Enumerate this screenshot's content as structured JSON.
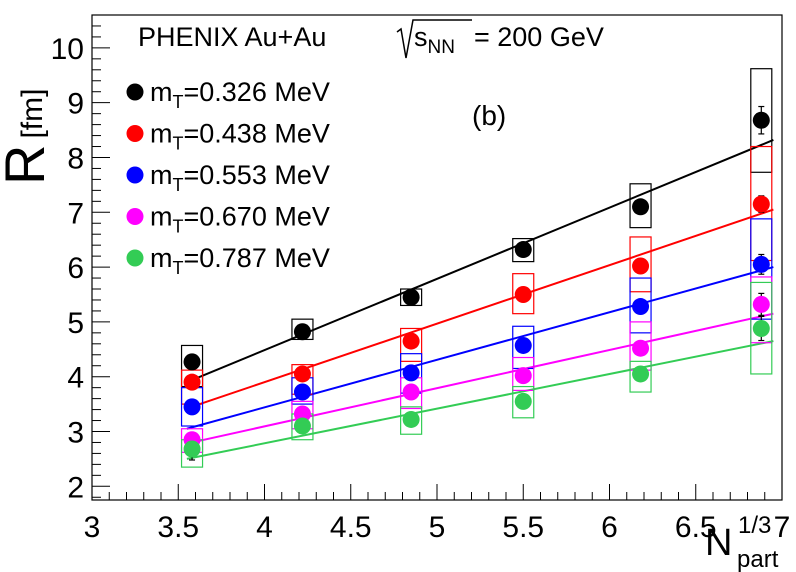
{
  "chart_data": {
    "type": "scatter",
    "title_main": "PHENIX Au+Au",
    "title_sqrt": "s",
    "title_sqrt_sub": "NN",
    "title_energy": "= 200 GeV",
    "panel_label": "(b)",
    "ylabel_main": "R",
    "ylabel_unit": "[fm]",
    "xlabel_main": "N",
    "xlabel_sub": "part",
    "xlabel_sup": "1/3",
    "legend_prefix": "m",
    "legend_sub": "T",
    "xlim": [
      3,
      7
    ],
    "ylim": [
      1.75,
      10.6
    ],
    "x_ticks": [
      "3",
      "3.5",
      "4",
      "4.5",
      "5",
      "5.5",
      "6",
      "6.5",
      "7"
    ],
    "y_ticks": [
      "2",
      "3",
      "4",
      "5",
      "6",
      "7",
      "8",
      "9",
      "10"
    ],
    "x": [
      3.58,
      4.22,
      4.85,
      5.5,
      6.18,
      6.88
    ],
    "series": [
      {
        "name": "=0.326 MeV",
        "color": "#000000",
        "values": [
          4.27,
          4.82,
          5.45,
          6.32,
          7.1,
          8.68
        ],
        "stat_err": [
          0.1,
          0.08,
          0.08,
          0.08,
          0.1,
          0.25
        ],
        "sys_low": [
          3.82,
          4.68,
          5.3,
          6.1,
          6.72,
          7.73
        ],
        "sys_high": [
          4.57,
          5.05,
          5.6,
          6.52,
          7.52,
          9.62
        ],
        "fit": [
          3.55,
          3.9,
          6.95,
          8.32
        ]
      },
      {
        "name": "=0.438 MeV",
        "color": "#ff0000",
        "values": [
          3.9,
          4.05,
          4.65,
          5.5,
          6.02,
          7.15
        ],
        "stat_err": [
          0.08,
          0.08,
          0.08,
          0.08,
          0.08,
          0.15
        ],
        "sys_low": [
          3.5,
          3.68,
          4.28,
          5.15,
          5.55,
          6.12
        ],
        "sys_high": [
          4.12,
          4.22,
          4.88,
          5.88,
          6.55,
          8.2
        ],
        "fit": [
          3.55,
          3.42,
          6.95,
          7.05
        ]
      },
      {
        "name": "=0.553 MeV",
        "color": "#0000ff",
        "values": [
          3.45,
          3.72,
          4.07,
          4.57,
          5.28,
          6.05
        ],
        "stat_err": [
          0.08,
          0.08,
          0.08,
          0.08,
          0.1,
          0.18
        ],
        "sys_low": [
          3.1,
          3.5,
          3.7,
          4.15,
          4.8,
          5.05
        ],
        "sys_high": [
          3.8,
          3.98,
          4.42,
          4.92,
          5.8,
          6.88
        ],
        "fit": [
          3.55,
          3.05,
          6.95,
          6.0
        ]
      },
      {
        "name": "=0.670 MeV",
        "color": "#ff00ff",
        "values": [
          2.85,
          3.32,
          3.72,
          4.02,
          4.52,
          5.32
        ],
        "stat_err": [
          0.08,
          0.08,
          0.08,
          0.08,
          0.1,
          0.2
        ],
        "sys_low": [
          2.62,
          3.05,
          3.42,
          3.75,
          4.12,
          4.62
        ],
        "sys_high": [
          3.05,
          3.55,
          3.98,
          4.35,
          5.0,
          5.82
        ],
        "fit": [
          3.55,
          2.78,
          6.95,
          5.15
        ]
      },
      {
        "name": "=0.787 MeV",
        "color": "#33cc55",
        "values": [
          2.68,
          3.1,
          3.22,
          3.55,
          4.05,
          4.88
        ],
        "stat_err": [
          0.2,
          0.1,
          0.1,
          0.1,
          0.12,
          0.22
        ],
        "sys_low": [
          2.35,
          2.85,
          2.95,
          3.25,
          3.72,
          4.05
        ],
        "sys_high": [
          2.85,
          3.32,
          3.45,
          3.82,
          4.28,
          5.72
        ],
        "fit": [
          3.55,
          2.5,
          6.95,
          4.65
        ]
      }
    ],
    "grid": false,
    "legend_position": "top-left"
  }
}
